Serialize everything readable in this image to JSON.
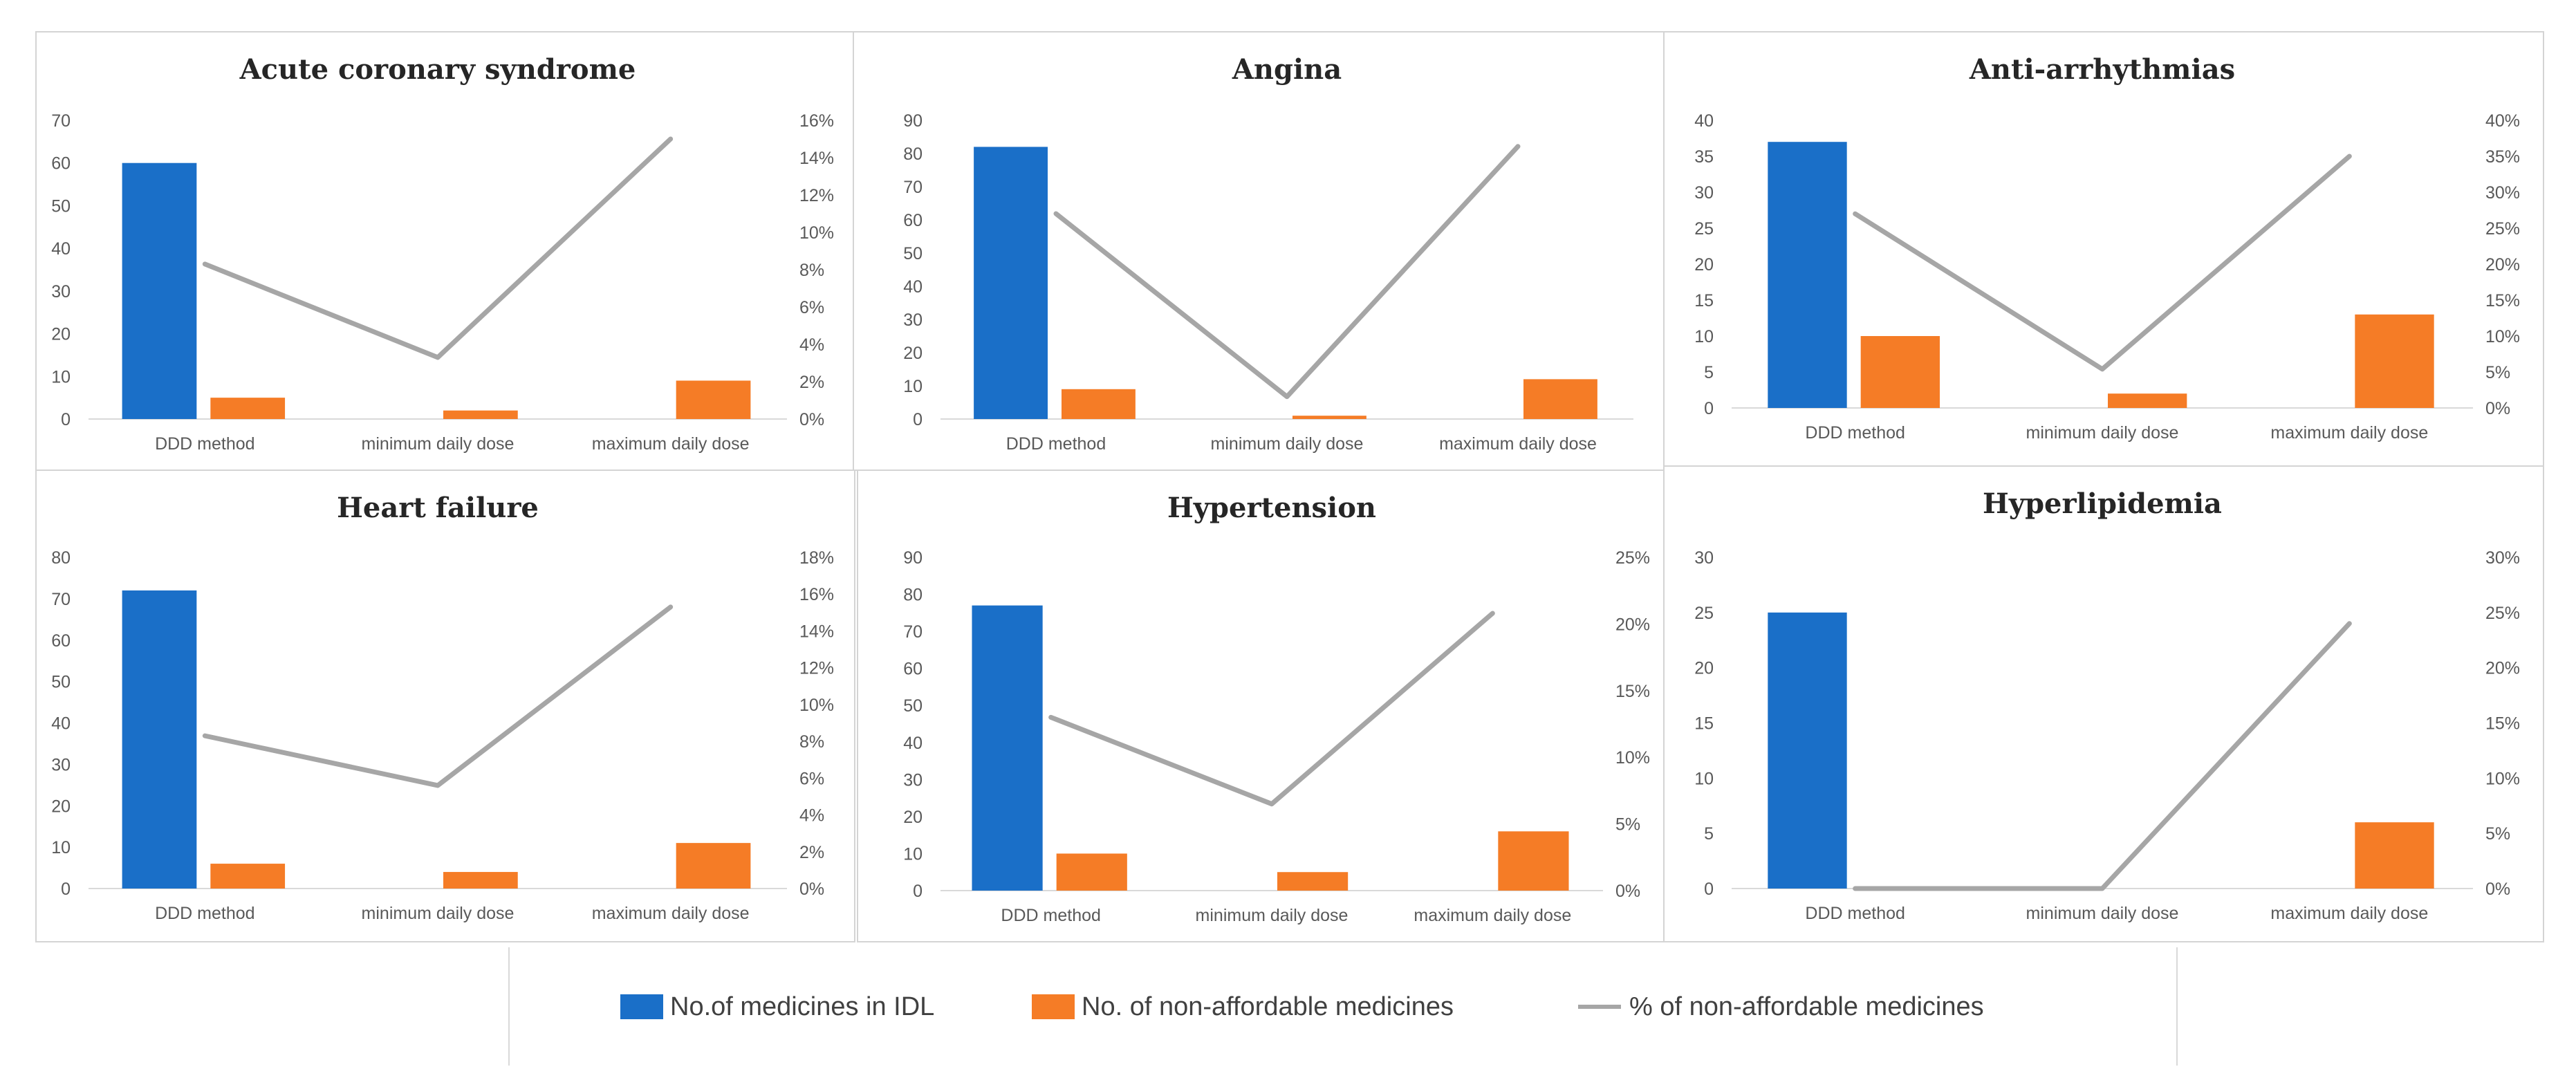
{
  "colors": {
    "bar_idl": "#1a6fc8",
    "bar_nonaff": "#f57c26",
    "line_pct": "#a6a6a6",
    "axis_text": "#595959",
    "title_text": "#262626",
    "border": "#d4d4d4",
    "gridline": "#d9d9d9"
  },
  "legend": {
    "idl_label": "No.of medicines in IDL",
    "nonaff_label": "No. of non-affordable medicines",
    "pct_label": "% of non-affordable medicines"
  },
  "chart_data": [
    {
      "type": "bar+line",
      "title": "Acute coronary syndrome",
      "categories": [
        "DDD method",
        "minimum daily dose",
        "maximum daily dose"
      ],
      "series": [
        {
          "name": "No.of medicines in IDL",
          "type": "bar",
          "axis": "left",
          "values": [
            60,
            null,
            null
          ]
        },
        {
          "name": "No. of non-affordable medicines",
          "type": "bar",
          "axis": "left",
          "values": [
            5,
            2,
            9
          ]
        },
        {
          "name": "% of non-affordable medicines",
          "type": "line",
          "axis": "right",
          "values": [
            0.083,
            0.033,
            0.15
          ]
        }
      ],
      "y_left": {
        "range": [
          0,
          70
        ],
        "ticks": [
          "0",
          "10",
          "20",
          "30",
          "40",
          "50",
          "60",
          "70"
        ]
      },
      "y_right": {
        "range": [
          0,
          0.16
        ],
        "ticks": [
          "0%",
          "2%",
          "4%",
          "6%",
          "8%",
          "10%",
          "12%",
          "14%",
          "16%"
        ]
      }
    },
    {
      "type": "bar+line",
      "title": "Angina",
      "categories": [
        "DDD method",
        "minimum daily dose",
        "maximum daily dose"
      ],
      "series": [
        {
          "name": "No.of medicines in IDL",
          "type": "bar",
          "axis": "left",
          "values": [
            82,
            null,
            null
          ]
        },
        {
          "name": "No. of non-affordable medicines",
          "type": "bar",
          "axis": "left",
          "values": [
            9,
            1,
            12
          ]
        },
        {
          "name": "% of non-affordable medicines",
          "type": "line",
          "axis": "right",
          "values": [
            0.11,
            0.012,
            0.146
          ]
        }
      ],
      "y_left": {
        "range": [
          0,
          90
        ],
        "ticks": [
          "0",
          "10",
          "20",
          "30",
          "40",
          "50",
          "60",
          "70",
          "80",
          "90"
        ]
      },
      "y_right": null
    },
    {
      "type": "bar+line",
      "title": "Anti-arrhythmias",
      "categories": [
        "DDD method",
        "minimum daily dose",
        "maximum daily dose"
      ],
      "series": [
        {
          "name": "No.of medicines in IDL",
          "type": "bar",
          "axis": "left",
          "values": [
            37,
            null,
            null
          ]
        },
        {
          "name": "No. of non-affordable medicines",
          "type": "bar",
          "axis": "left",
          "values": [
            10,
            2,
            13
          ]
        },
        {
          "name": "% of non-affordable medicines",
          "type": "line",
          "axis": "right",
          "values": [
            0.27,
            0.054,
            0.35
          ]
        }
      ],
      "y_left": {
        "range": [
          0,
          40
        ],
        "ticks": [
          "0",
          "5",
          "10",
          "15",
          "20",
          "25",
          "30",
          "35",
          "40"
        ]
      },
      "y_right": {
        "range": [
          0,
          0.4
        ],
        "ticks": [
          "0%",
          "5%",
          "10%",
          "15%",
          "20%",
          "25%",
          "30%",
          "35%",
          "40%"
        ]
      }
    },
    {
      "type": "bar+line",
      "title": "Heart failure",
      "categories": [
        "DDD method",
        "minimum daily dose",
        "maximum daily dose"
      ],
      "series": [
        {
          "name": "No.of medicines in IDL",
          "type": "bar",
          "axis": "left",
          "values": [
            72,
            null,
            null
          ]
        },
        {
          "name": "No. of non-affordable medicines",
          "type": "bar",
          "axis": "left",
          "values": [
            6,
            4,
            11
          ]
        },
        {
          "name": "% of non-affordable medicines",
          "type": "line",
          "axis": "right",
          "values": [
            0.083,
            0.056,
            0.153
          ]
        }
      ],
      "y_left": {
        "range": [
          0,
          80
        ],
        "ticks": [
          "0",
          "10",
          "20",
          "30",
          "40",
          "50",
          "60",
          "70",
          "80"
        ]
      },
      "y_right": {
        "range": [
          0,
          0.18
        ],
        "ticks": [
          "0%",
          "2%",
          "4%",
          "6%",
          "8%",
          "10%",
          "12%",
          "14%",
          "16%",
          "18%"
        ]
      }
    },
    {
      "type": "bar+line",
      "title": "Hypertension",
      "categories": [
        "DDD method",
        "minimum daily dose",
        "maximum daily dose"
      ],
      "series": [
        {
          "name": "No.of medicines in IDL",
          "type": "bar",
          "axis": "left",
          "values": [
            77,
            null,
            null
          ]
        },
        {
          "name": "No. of non-affordable medicines",
          "type": "bar",
          "axis": "left",
          "values": [
            10,
            5,
            16
          ]
        },
        {
          "name": "% of non-affordable medicines",
          "type": "line",
          "axis": "right",
          "values": [
            0.13,
            0.065,
            0.208
          ]
        }
      ],
      "y_left": {
        "range": [
          0,
          90
        ],
        "ticks": [
          "0",
          "10",
          "20",
          "30",
          "40",
          "50",
          "60",
          "70",
          "80",
          "90"
        ]
      },
      "y_right": {
        "range": [
          0,
          0.25
        ],
        "ticks": [
          "0%",
          "5%",
          "10%",
          "15%",
          "20%",
          "25%"
        ]
      }
    },
    {
      "type": "bar+line",
      "title": "Hyperlipidemia",
      "categories": [
        "DDD method",
        "minimum daily dose",
        "maximum daily dose"
      ],
      "series": [
        {
          "name": "No.of medicines in IDL",
          "type": "bar",
          "axis": "left",
          "values": [
            25,
            null,
            null
          ]
        },
        {
          "name": "No. of non-affordable medicines",
          "type": "bar",
          "axis": "left",
          "values": [
            0,
            0,
            6
          ]
        },
        {
          "name": "% of non-affordable medicines",
          "type": "line",
          "axis": "right",
          "values": [
            0,
            0,
            0.24
          ]
        }
      ],
      "y_left": {
        "range": [
          0,
          30
        ],
        "ticks": [
          "0",
          "5",
          "10",
          "15",
          "20",
          "25",
          "30"
        ]
      },
      "y_right": {
        "range": [
          0,
          0.3
        ],
        "ticks": [
          "0%",
          "5%",
          "10%",
          "15%",
          "20%",
          "25%",
          "30%"
        ]
      }
    }
  ]
}
